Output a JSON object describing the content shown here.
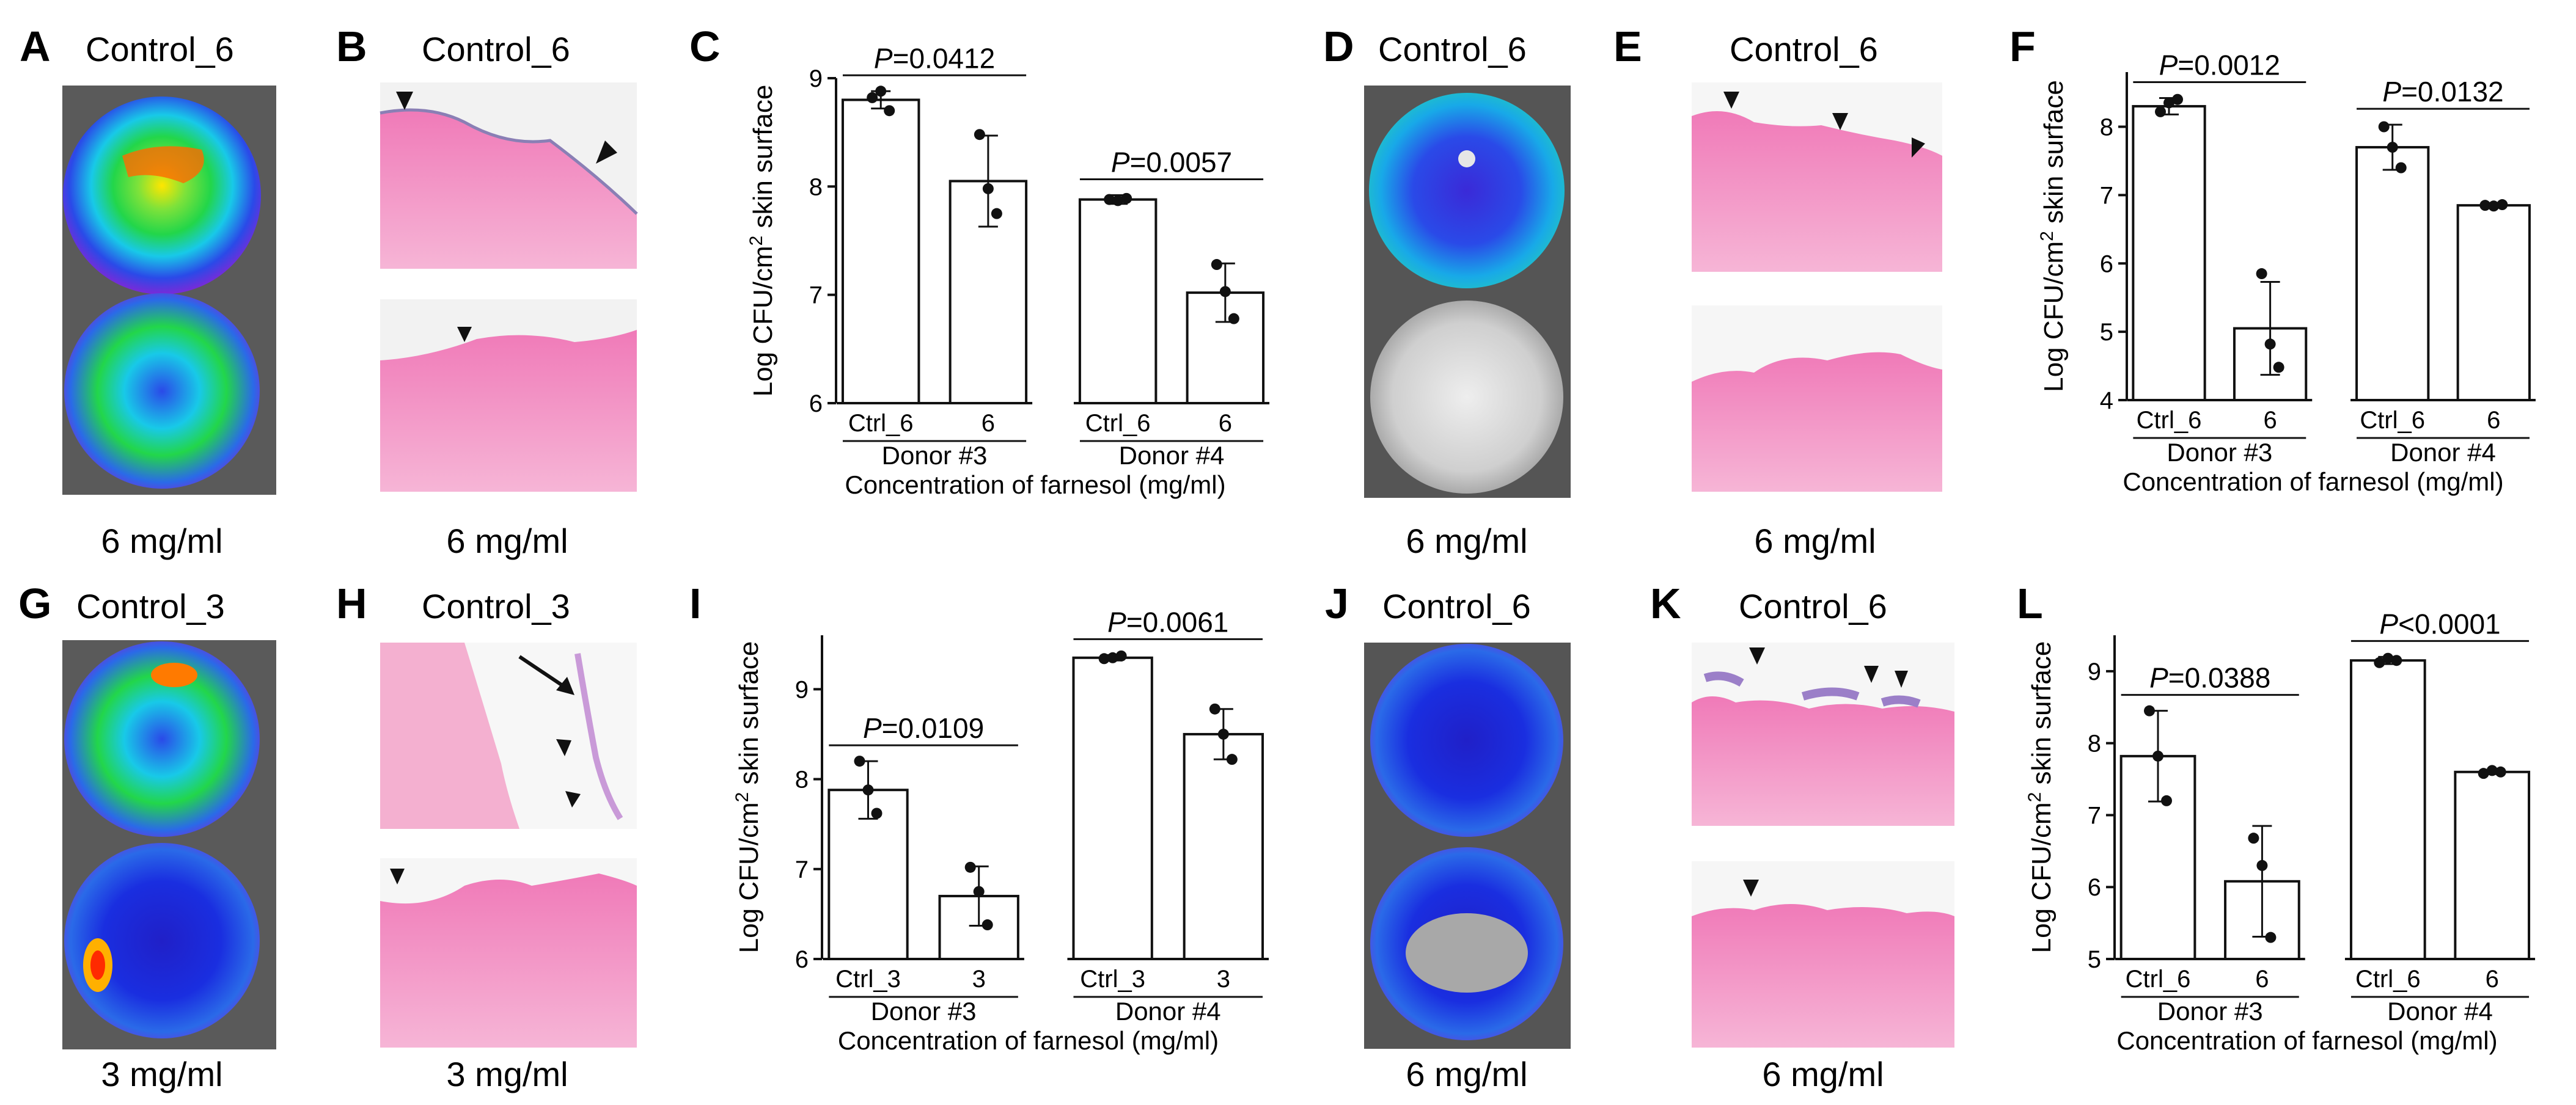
{
  "panels": {
    "A": {
      "label": "A",
      "title": "Control_6",
      "caption": "6 mg/ml"
    },
    "B": {
      "label": "B",
      "title": "Control_6",
      "caption": "6 mg/ml"
    },
    "D": {
      "label": "D",
      "title": "Control_6",
      "caption": "6 mg/ml"
    },
    "E": {
      "label": "E",
      "title": "Control_6",
      "caption": "6 mg/ml"
    },
    "G": {
      "label": "G",
      "title": "Control_3",
      "caption": "3 mg/ml"
    },
    "H": {
      "label": "H",
      "title": "Control_3",
      "caption": "3 mg/ml"
    },
    "J": {
      "label": "J",
      "title": "Control_6",
      "caption": "6 mg/ml"
    },
    "K": {
      "label": "K",
      "title": "Control_6",
      "caption": "6 mg/ml"
    }
  },
  "colors": {
    "tissue": "#e8559f",
    "tissue_light": "#f4a6cf",
    "biofilm": "#9b7fc8",
    "bio_red": "#ff2a00",
    "bio_yellow": "#ffe600",
    "bio_green": "#22d64a",
    "bio_cyan": "#18c9e8",
    "bio_blue": "#2a4ae8",
    "bio_navy": "#1a1acc",
    "bio_purple": "#7a2ad8",
    "bg_dark": "#555555"
  },
  "chart_data": [
    {
      "panel": "C",
      "type": "bar",
      "ylabel": "Log CFU/cm² skin surface",
      "ylim": [
        6,
        9
      ],
      "yticks": [
        6,
        7,
        8,
        9
      ],
      "categories": [
        "Ctrl_6",
        "6",
        "Ctrl_6",
        "6"
      ],
      "groups": [
        "Donor #3",
        "Donor #4"
      ],
      "xlabel": "Concentration of farnesol (mg/ml)",
      "values": [
        8.8,
        8.05,
        7.88,
        7.02
      ],
      "errors": [
        0.08,
        0.42,
        0.04,
        0.27
      ],
      "points": [
        [
          8.82,
          8.88,
          8.7
        ],
        [
          8.48,
          7.98,
          7.75
        ],
        [
          7.88,
          7.87,
          7.89
        ],
        [
          7.28,
          7.03,
          6.78
        ]
      ],
      "comparisons": [
        {
          "from": 0,
          "to": 1,
          "label": "P=0.0412"
        },
        {
          "from": 2,
          "to": 3,
          "label": "P=0.0057"
        }
      ]
    },
    {
      "panel": "F",
      "type": "bar",
      "ylabel": "Log CFU/cm² skin surface",
      "ylim": [
        4,
        8.8
      ],
      "yticks": [
        4,
        5,
        6,
        7,
        8
      ],
      "categories": [
        "Ctrl_6",
        "6",
        "Ctrl_6",
        "6"
      ],
      "groups": [
        "Donor #3",
        "Donor #4"
      ],
      "xlabel": "Concentration of farnesol (mg/ml)",
      "values": [
        8.3,
        5.05,
        7.7,
        6.85
      ],
      "errors": [
        0.12,
        0.68,
        0.33,
        0.02
      ],
      "points": [
        [
          8.22,
          8.35,
          8.4
        ],
        [
          5.85,
          4.82,
          4.48
        ],
        [
          8.0,
          7.7,
          7.4
        ],
        [
          6.85,
          6.84,
          6.86
        ]
      ],
      "comparisons": [
        {
          "from": 0,
          "to": 1,
          "label": "P=0.0012"
        },
        {
          "from": 2,
          "to": 3,
          "label": "P=0.0132"
        }
      ]
    },
    {
      "panel": "I",
      "type": "bar",
      "ylabel": "Log CFU/cm² skin surface",
      "ylim": [
        6,
        9.6
      ],
      "yticks": [
        6,
        7,
        8,
        9
      ],
      "categories": [
        "Ctrl_3",
        "3",
        "Ctrl_3",
        "3"
      ],
      "groups": [
        "Donor #3",
        "Donor #4"
      ],
      "xlabel": "Concentration of farnesol (mg/ml)",
      "values": [
        7.88,
        6.7,
        9.35,
        8.5
      ],
      "errors": [
        0.32,
        0.33,
        0.03,
        0.28
      ],
      "points": [
        [
          8.2,
          7.88,
          7.62
        ],
        [
          7.02,
          6.75,
          6.38
        ],
        [
          9.34,
          9.35,
          9.37
        ],
        [
          8.78,
          8.5,
          8.22
        ]
      ],
      "comparisons": [
        {
          "from": 0,
          "to": 1,
          "label": "P=0.0109"
        },
        {
          "from": 2,
          "to": 3,
          "label": "P=0.0061"
        }
      ]
    },
    {
      "panel": "L",
      "type": "bar",
      "ylabel": "Log CFU/cm² skin surface",
      "ylim": [
        5,
        9.5
      ],
      "yticks": [
        5,
        6,
        7,
        8,
        9
      ],
      "categories": [
        "Ctrl_6",
        "6",
        "Ctrl_6",
        "6"
      ],
      "groups": [
        "Donor #3",
        "Donor #4"
      ],
      "xlabel": "Concentration of farnesol (mg/ml)",
      "values": [
        7.82,
        6.08,
        9.15,
        7.6
      ],
      "errors": [
        0.63,
        0.77,
        0.05,
        0.03
      ],
      "points": [
        [
          8.45,
          7.82,
          7.2
        ],
        [
          6.68,
          6.3,
          5.3
        ],
        [
          9.12,
          9.18,
          9.15
        ],
        [
          7.58,
          7.62,
          7.6
        ]
      ],
      "comparisons": [
        {
          "from": 0,
          "to": 1,
          "label": "P=0.0388"
        },
        {
          "from": 2,
          "to": 3,
          "label": "P<0.0001"
        }
      ]
    }
  ]
}
